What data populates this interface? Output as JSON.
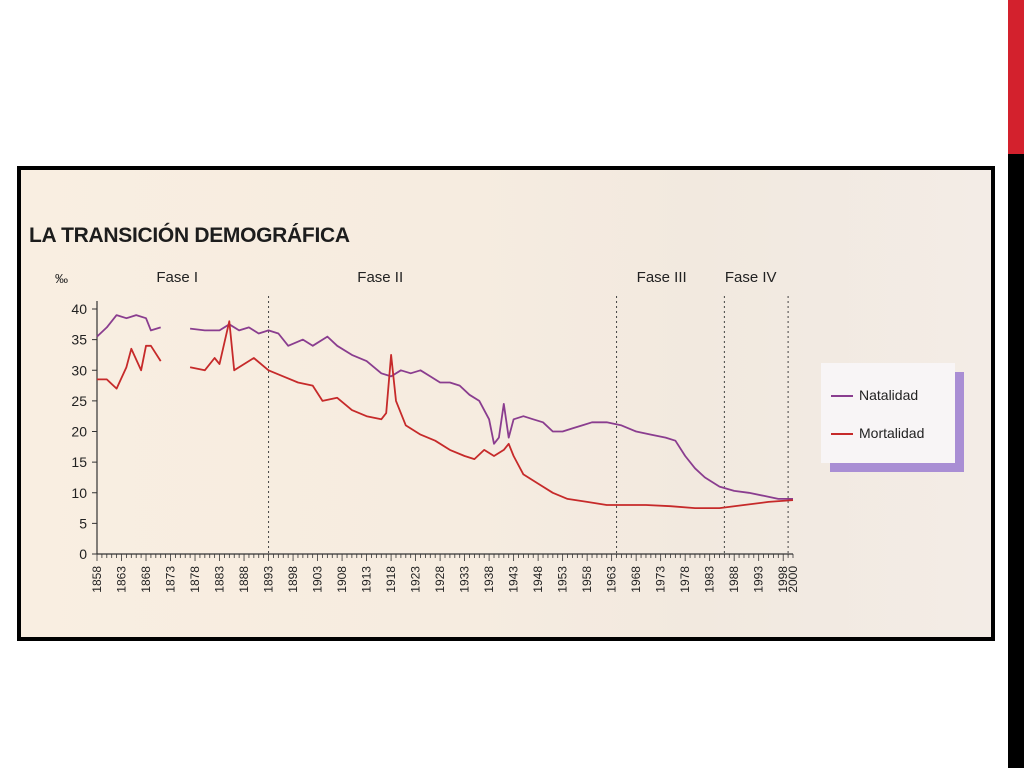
{
  "page": {
    "accent_colors": {
      "top": "#d3212d",
      "side": "#000000"
    }
  },
  "chart_data": {
    "type": "line",
    "title": "LA TRANSICIÓN DEMOGRÁFICA",
    "ylabel": "‰",
    "xlabel": "",
    "xlim": [
      1858,
      2000
    ],
    "ylim": [
      0,
      40
    ],
    "yticks": [
      0,
      5,
      10,
      15,
      20,
      25,
      30,
      35,
      40
    ],
    "xticks": [
      1858,
      1863,
      1868,
      1873,
      1878,
      1883,
      1888,
      1893,
      1898,
      1903,
      1908,
      1913,
      1918,
      1923,
      1928,
      1933,
      1938,
      1943,
      1948,
      1953,
      1958,
      1963,
      1968,
      1973,
      1978,
      1983,
      1988,
      1993,
      1998,
      2000
    ],
    "grid": false,
    "legend_position": "right",
    "phases": [
      {
        "label": "Fase I",
        "center": 1875
      },
      {
        "label": "Fase II",
        "center": 1916
      },
      {
        "label": "Fase III",
        "center": 1973
      },
      {
        "label": "Fase IV",
        "center": 1991
      }
    ],
    "phase_dividers": [
      1893,
      1964,
      1986,
      1999
    ],
    "series": [
      {
        "name": "Natalidad",
        "color": "#8a3d8f",
        "segments": [
          [
            [
              1858,
              35.5
            ],
            [
              1860,
              37
            ],
            [
              1862,
              39
            ],
            [
              1864,
              38.5
            ],
            [
              1866,
              39
            ],
            [
              1868,
              38.5
            ],
            [
              1869,
              36.5
            ],
            [
              1871,
              37
            ]
          ],
          [
            [
              1877,
              36.8
            ],
            [
              1880,
              36.5
            ],
            [
              1883,
              36.5
            ],
            [
              1885,
              37.5
            ],
            [
              1887,
              36.5
            ],
            [
              1889,
              37
            ],
            [
              1891,
              36
            ],
            [
              1893,
              36.5
            ],
            [
              1895,
              36
            ],
            [
              1897,
              34
            ],
            [
              1900,
              35
            ],
            [
              1902,
              34
            ],
            [
              1905,
              35.5
            ],
            [
              1907,
              34
            ],
            [
              1910,
              32.5
            ],
            [
              1913,
              31.5
            ],
            [
              1916,
              29.5
            ],
            [
              1918,
              29
            ],
            [
              1920,
              30
            ],
            [
              1922,
              29.5
            ],
            [
              1924,
              30
            ],
            [
              1926,
              29
            ],
            [
              1928,
              28
            ],
            [
              1930,
              28
            ],
            [
              1932,
              27.5
            ],
            [
              1934,
              26
            ],
            [
              1936,
              25
            ],
            [
              1938,
              22
            ],
            [
              1939,
              18
            ],
            [
              1940,
              19
            ],
            [
              1941,
              24.5
            ],
            [
              1942,
              19
            ],
            [
              1943,
              22
            ],
            [
              1945,
              22.5
            ],
            [
              1947,
              22
            ],
            [
              1949,
              21.5
            ],
            [
              1951,
              20
            ],
            [
              1953,
              20
            ],
            [
              1955,
              20.5
            ],
            [
              1957,
              21
            ],
            [
              1959,
              21.5
            ],
            [
              1962,
              21.5
            ],
            [
              1965,
              21
            ],
            [
              1968,
              20
            ],
            [
              1971,
              19.5
            ],
            [
              1974,
              19
            ],
            [
              1976,
              18.5
            ],
            [
              1978,
              16
            ],
            [
              1980,
              14
            ],
            [
              1982,
              12.5
            ],
            [
              1985,
              11
            ],
            [
              1988,
              10.3
            ],
            [
              1991,
              10
            ],
            [
              1994,
              9.5
            ],
            [
              1997,
              9
            ],
            [
              2000,
              9
            ]
          ]
        ]
      },
      {
        "name": "Mortalidad",
        "color": "#c62a2a",
        "segments": [
          [
            [
              1858,
              28.5
            ],
            [
              1860,
              28.5
            ],
            [
              1862,
              27
            ],
            [
              1864,
              30.5
            ],
            [
              1865,
              33.5
            ],
            [
              1867,
              30
            ],
            [
              1868,
              34
            ],
            [
              1869,
              34
            ],
            [
              1871,
              31.5
            ]
          ],
          [
            [
              1877,
              30.5
            ],
            [
              1880,
              30
            ],
            [
              1882,
              32
            ],
            [
              1883,
              31
            ],
            [
              1885,
              38
            ],
            [
              1886,
              30
            ],
            [
              1888,
              31
            ],
            [
              1890,
              32
            ],
            [
              1893,
              30
            ],
            [
              1896,
              29
            ],
            [
              1899,
              28
            ],
            [
              1902,
              27.5
            ],
            [
              1904,
              25
            ],
            [
              1907,
              25.5
            ],
            [
              1910,
              23.5
            ],
            [
              1913,
              22.5
            ],
            [
              1916,
              22
            ],
            [
              1917,
              23
            ],
            [
              1918,
              32.5
            ],
            [
              1919,
              25
            ],
            [
              1921,
              21
            ],
            [
              1924,
              19.5
            ],
            [
              1927,
              18.5
            ],
            [
              1930,
              17
            ],
            [
              1933,
              16
            ],
            [
              1935,
              15.5
            ],
            [
              1937,
              17
            ],
            [
              1939,
              16
            ],
            [
              1941,
              17
            ],
            [
              1942,
              18
            ],
            [
              1943,
              16
            ],
            [
              1945,
              13
            ],
            [
              1948,
              11.5
            ],
            [
              1951,
              10
            ],
            [
              1954,
              9
            ],
            [
              1958,
              8.5
            ],
            [
              1962,
              8
            ],
            [
              1966,
              8
            ],
            [
              1970,
              8
            ],
            [
              1975,
              7.8
            ],
            [
              1980,
              7.5
            ],
            [
              1985,
              7.5
            ],
            [
              1990,
              8
            ],
            [
              1995,
              8.5
            ],
            [
              2000,
              8.8
            ]
          ]
        ]
      }
    ]
  }
}
